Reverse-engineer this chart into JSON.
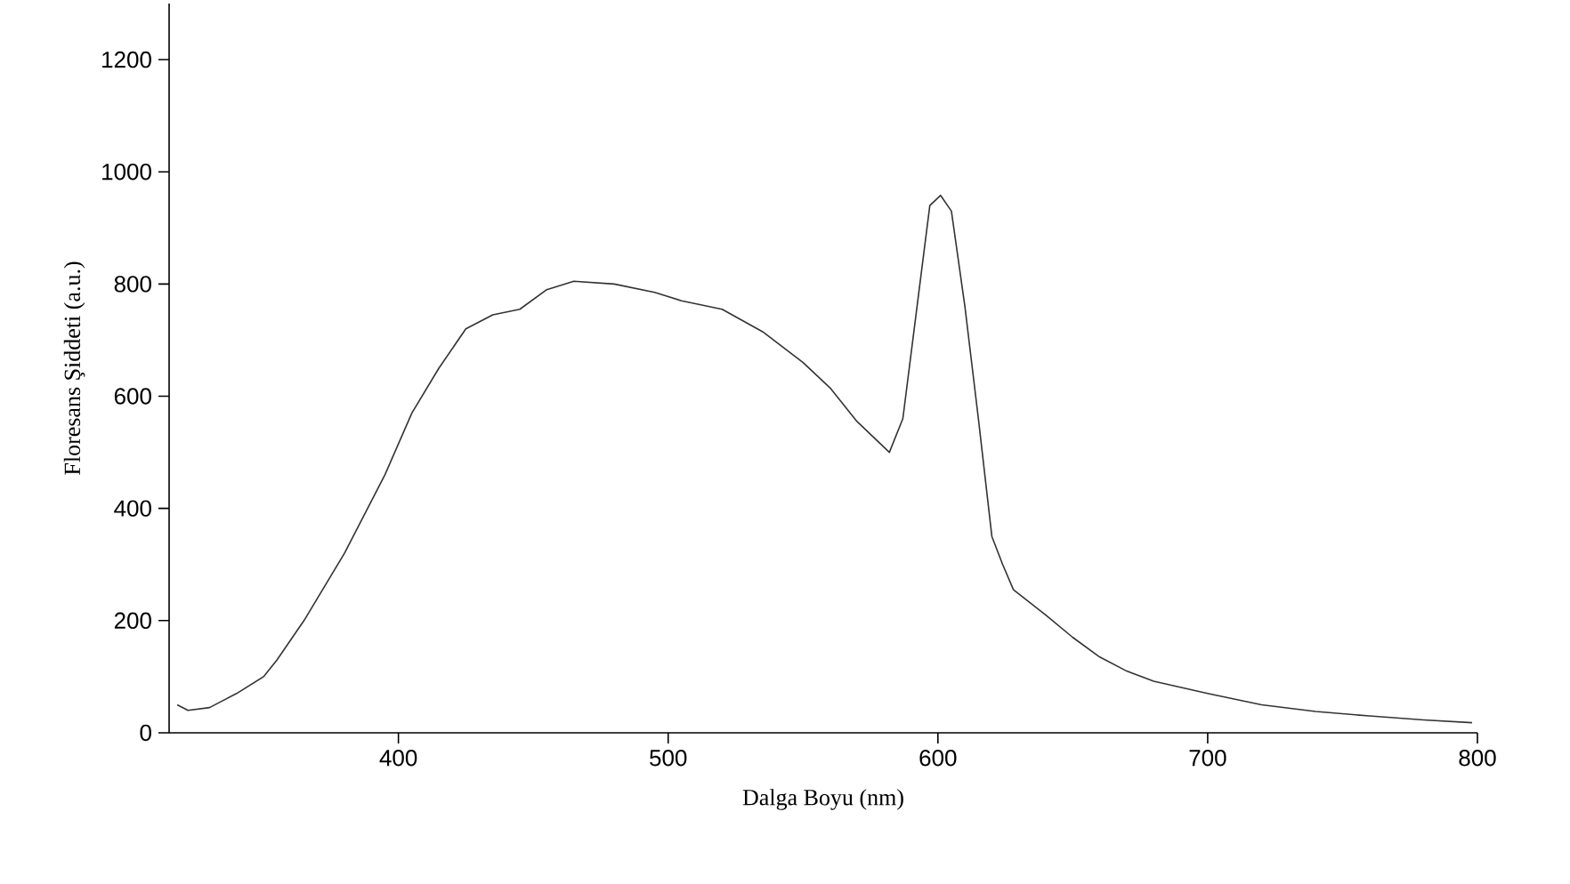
{
  "chart_data": {
    "type": "line",
    "xlabel": "Dalga Boyu (nm)",
    "ylabel": "Floresans Şiddeti (a.u.)",
    "xlim": [
      315,
      800
    ],
    "ylim": [
      0,
      1300
    ],
    "xticks": [
      400,
      500,
      600,
      700,
      800
    ],
    "yticks": [
      0,
      200,
      400,
      600,
      800,
      1000,
      1200
    ],
    "marker": "none",
    "line_style": "solid",
    "series": [
      {
        "color": "#333333",
        "x": [
          318,
          322,
          330,
          340,
          350,
          355,
          365,
          380,
          395,
          405,
          415,
          425,
          435,
          445,
          455,
          465,
          480,
          495,
          505,
          520,
          535,
          550,
          560,
          570,
          582,
          587,
          592,
          597,
          601,
          605,
          610,
          615,
          620,
          624,
          628,
          640,
          650,
          660,
          670,
          680,
          700,
          720,
          740,
          760,
          780,
          798
        ],
        "values": [
          50,
          40,
          45,
          70,
          100,
          130,
          200,
          320,
          460,
          570,
          650,
          720,
          745,
          755,
          790,
          805,
          800,
          785,
          770,
          755,
          715,
          660,
          615,
          555,
          500,
          560,
          750,
          940,
          958,
          930,
          760,
          560,
          350,
          300,
          255,
          210,
          170,
          135,
          110,
          92,
          70,
          50,
          38,
          30,
          23,
          18
        ]
      }
    ]
  }
}
